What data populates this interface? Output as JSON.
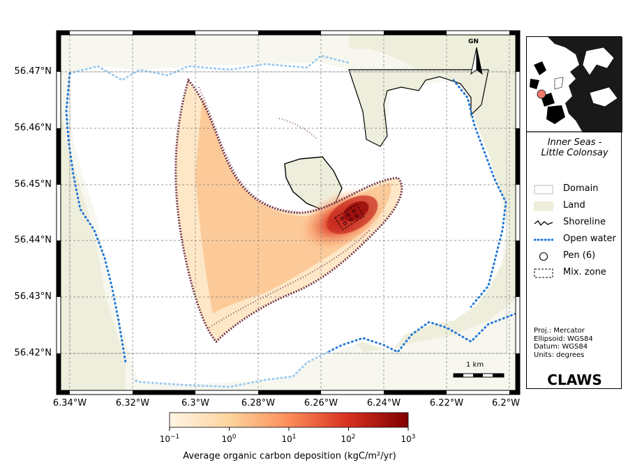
{
  "map": {
    "y_ticks": [
      "56.47°N",
      "56.46°N",
      "56.45°N",
      "56.44°N",
      "56.43°N",
      "56.42°N"
    ],
    "x_ticks": [
      "6.34°W",
      "6.32°W",
      "6.3°W",
      "6.28°W",
      "6.26°W",
      "6.24°W",
      "6.22°W",
      "6.2°W"
    ],
    "north_arrow_label": "GN",
    "scale_bar_label": "1 km",
    "colors": {
      "land": "#eeeedc",
      "open_water": "#1f78d8",
      "shoreline": "#000000",
      "deposition_high": "#b01010",
      "deposition_low": "#fde2b8",
      "contour": "#5a1530"
    }
  },
  "legend": {
    "site_title": "Inner Seas - Little Colonsay",
    "items": [
      {
        "label": "Domain",
        "symbol": "domain-rect"
      },
      {
        "label": "Land",
        "symbol": "land-patch"
      },
      {
        "label": "Shoreline",
        "symbol": "shoreline-line"
      },
      {
        "label": "Open water",
        "symbol": "open-water-dots"
      },
      {
        "label": "Pen (6)",
        "symbol": "pen-circle"
      },
      {
        "label": "Mix. zone",
        "symbol": "mix-zone-dashed"
      }
    ],
    "meta": [
      "Proj.: Mercator",
      "Ellipsoid: WGS84",
      "Datum: WGS84",
      "Units: degrees"
    ],
    "brand": "CLAWS"
  },
  "colorbar": {
    "label": "Average organic carbon deposition (kgC/m²/yr)",
    "ticks": [
      {
        "base": "10",
        "exp": "−1"
      },
      {
        "base": "10",
        "exp": "0"
      },
      {
        "base": "10",
        "exp": "1"
      },
      {
        "base": "10",
        "exp": "2"
      },
      {
        "base": "10",
        "exp": "3"
      }
    ],
    "colors": [
      "#fff5e6",
      "#fdd49e",
      "#fc8d59",
      "#d7301f",
      "#7f0000"
    ]
  }
}
